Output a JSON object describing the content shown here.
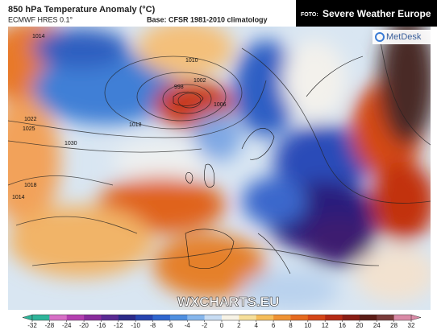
{
  "header": {
    "title": "850 hPa Temperature Anomaly (°C)",
    "model": "ECMWF HRES 0.1°",
    "base": "Base: CFSR 1981-2010 climatology"
  },
  "credit": {
    "prefix": "FOTO:",
    "source": "Severe Weather Europe"
  },
  "logo": "MetDesk",
  "watermark": "WXCHARTS.EU",
  "isobars": [
    "1014",
    "1010",
    "998",
    "1002",
    "1006",
    "1018",
    "1022",
    "1025",
    "1030",
    "1018",
    "1014"
  ],
  "colorbar": {
    "ticks": [
      -32,
      -28,
      -24,
      -20,
      -16,
      -12,
      -10,
      -8,
      -6,
      -4,
      -2,
      0,
      2,
      4,
      6,
      8,
      10,
      12,
      16,
      20,
      24,
      28,
      32
    ],
    "colors": [
      "#2fb59a",
      "#d76fc6",
      "#b43fb0",
      "#8a2b9c",
      "#5a2a93",
      "#2c2a8a",
      "#2744b0",
      "#2f66cf",
      "#4f8fe0",
      "#86b6ec",
      "#c7dcf3",
      "#f7f3e6",
      "#f6df9a",
      "#f5bd5a",
      "#ef9233",
      "#e66a1e",
      "#d54617",
      "#b52a14",
      "#8a1d14",
      "#5c1d17",
      "#7a3b3a",
      "#d98aa6"
    ]
  }
}
